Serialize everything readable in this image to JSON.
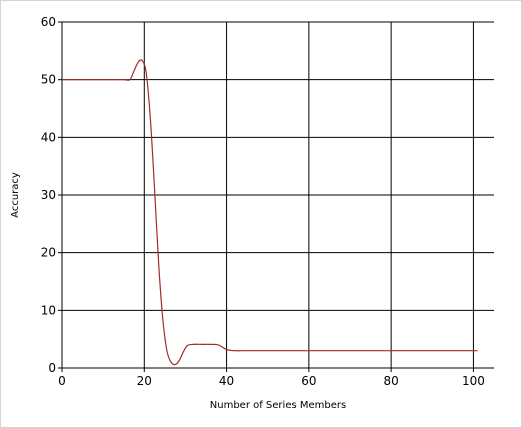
{
  "chart_data": {
    "type": "line",
    "title": "",
    "xlabel": "Number of Series Members",
    "ylabel": "Accuracy",
    "xlim": [
      0,
      105
    ],
    "ylim": [
      0,
      60
    ],
    "x_ticks": [
      0,
      20,
      40,
      60,
      80,
      100
    ],
    "y_ticks": [
      0,
      10,
      20,
      30,
      40,
      50,
      60
    ],
    "grid": true,
    "legend": "none",
    "series": [
      {
        "color": "#a52a2a",
        "x": [
          0,
          5,
          10,
          15,
          16.5,
          17.5,
          18.5,
          19.5,
          20.5,
          21.5,
          22.5,
          23.5,
          24.5,
          25.5,
          26.5,
          27.5,
          28.5,
          29.5,
          30.5,
          32,
          34,
          36,
          38,
          40,
          42,
          44,
          50,
          60,
          70,
          80,
          90,
          101
        ],
        "y": [
          50,
          50,
          50,
          50,
          50,
          51.5,
          53,
          53.3,
          51,
          43,
          31,
          18,
          8.5,
          3,
          1,
          0.6,
          1.3,
          2.8,
          3.9,
          4.1,
          4.1,
          4.1,
          4.0,
          3.2,
          3.0,
          3.0,
          3.0,
          3.0,
          3.0,
          3.0,
          3.0,
          3.0
        ]
      }
    ]
  }
}
